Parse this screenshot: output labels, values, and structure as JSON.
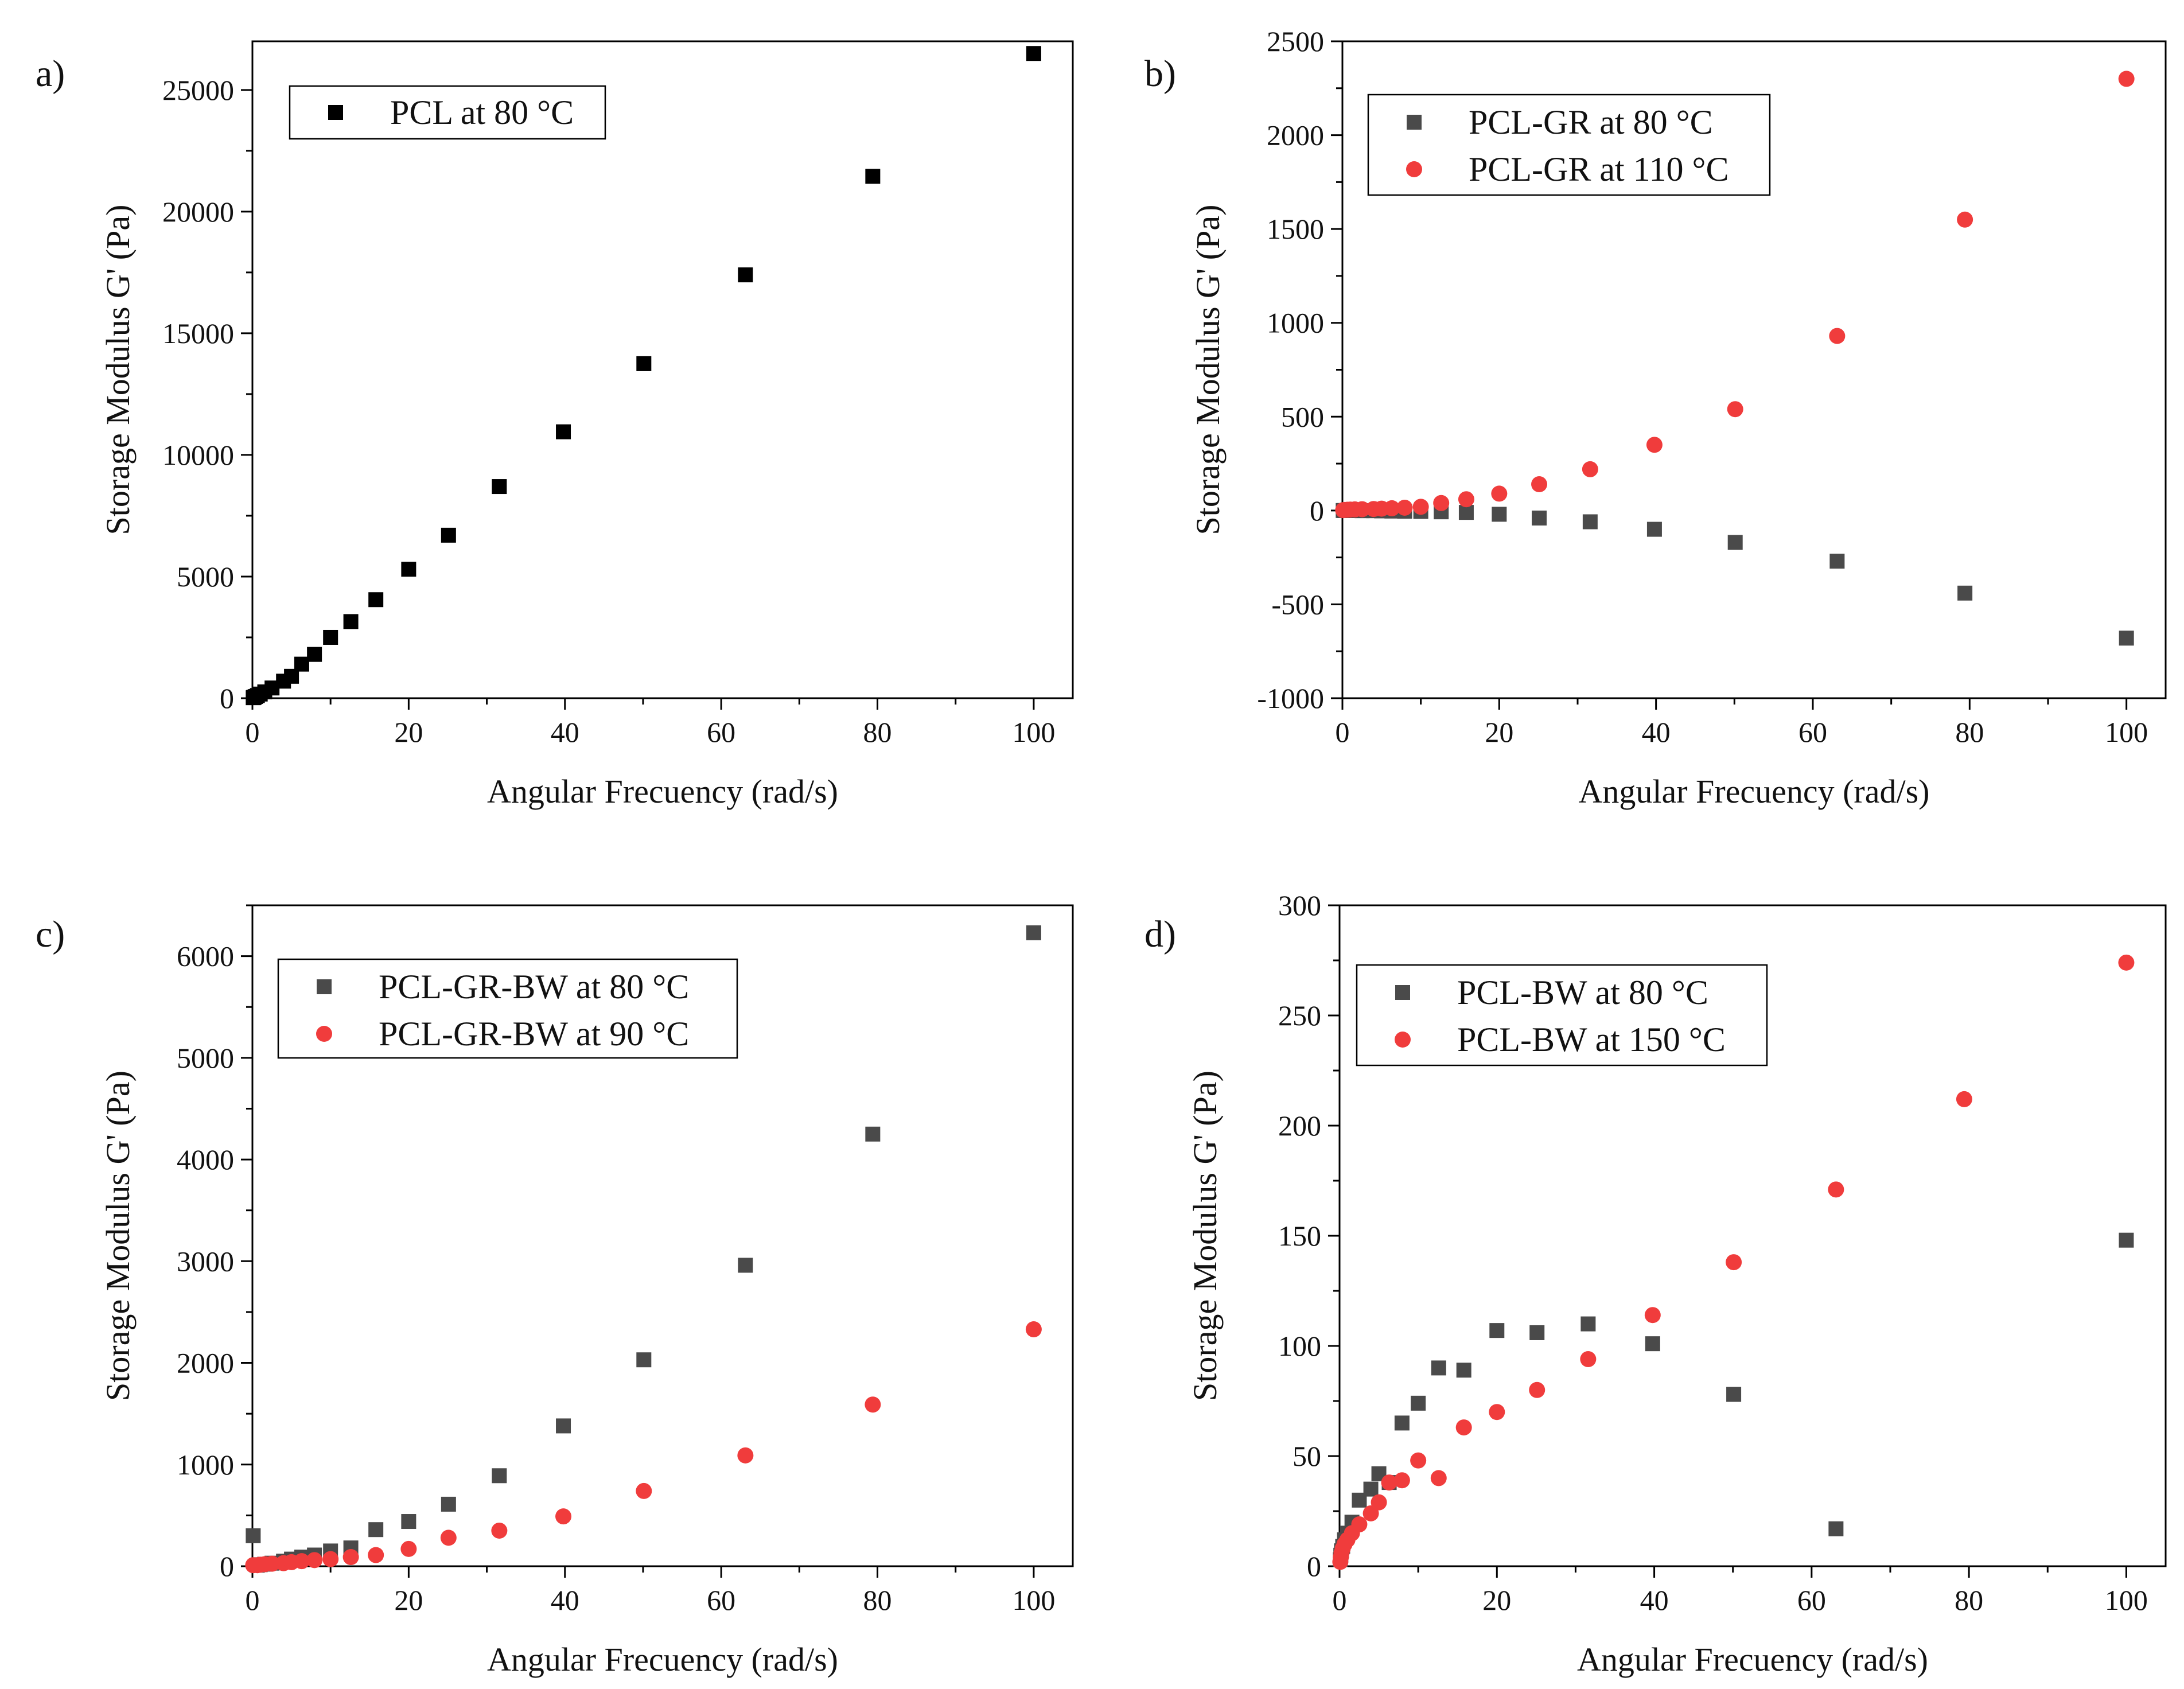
{
  "figure": {
    "panel_count": 4
  },
  "chart_data": [
    {
      "panel_label": "a)",
      "type": "scatter",
      "xlabel": "Angular Frecuency (rad/s)",
      "ylabel": "Storage Modulus G' (Pa)",
      "xlim": [
        0,
        105
      ],
      "ylim": [
        0,
        27000
      ],
      "x_ticks": [
        0,
        20,
        40,
        60,
        80,
        100
      ],
      "y_ticks": [
        0,
        5000,
        10000,
        15000,
        20000,
        25000
      ],
      "legend": "top-left",
      "series": [
        {
          "name": "PCL at 80 °C",
          "marker": "square",
          "color": "#000000",
          "x": [
            0.1,
            0.16,
            0.25,
            0.4,
            0.63,
            1,
            1.58,
            2.51,
            3.98,
            5,
            6.31,
            7.94,
            10,
            12.6,
            15.8,
            20,
            25.1,
            31.6,
            39.8,
            50.1,
            63.1,
            79.4,
            100
          ],
          "y": [
            20,
            30,
            45,
            70,
            110,
            170,
            260,
            420,
            700,
            900,
            1400,
            1800,
            2500,
            3150,
            4050,
            5300,
            6700,
            8700,
            10950,
            13750,
            17400,
            21450,
            26500
          ]
        }
      ]
    },
    {
      "panel_label": "b)",
      "type": "scatter",
      "xlabel": "Angular Frecuency (rad/s)",
      "ylabel": "Storage Modulus G' (Pa)",
      "xlim": [
        0,
        105
      ],
      "ylim": [
        -1000,
        2500
      ],
      "x_ticks": [
        0,
        20,
        40,
        60,
        80,
        100
      ],
      "y_ticks": [
        -1000,
        -500,
        0,
        500,
        1000,
        1500,
        2000,
        2500
      ],
      "legend": "top-left",
      "series": [
        {
          "name": "PCL-GR at 80 °C",
          "marker": "square",
          "color": "#4a4a4a",
          "x": [
            0.1,
            0.25,
            0.63,
            1,
            1.58,
            2.51,
            3.98,
            5,
            6.31,
            7.94,
            10,
            12.6,
            15.8,
            20,
            25.1,
            31.6,
            39.8,
            50.1,
            63.1,
            79.4,
            100
          ],
          "y": [
            0,
            0,
            0,
            0,
            0,
            -1,
            -1,
            -2,
            -3,
            -4,
            -5,
            -7,
            -10,
            -20,
            -40,
            -60,
            -100,
            -170,
            -270,
            -440,
            -680
          ]
        },
        {
          "name": "PCL-GR at 110 °C",
          "marker": "circle",
          "color": "#f03c3c",
          "x": [
            0.1,
            0.25,
            0.63,
            1,
            1.58,
            2.51,
            3.98,
            5,
            6.31,
            7.94,
            10,
            12.6,
            15.8,
            20,
            25.1,
            31.6,
            39.8,
            50.1,
            63.1,
            79.4,
            100
          ],
          "y": [
            2,
            3,
            4,
            5,
            6,
            7,
            8,
            10,
            12,
            15,
            20,
            40,
            60,
            90,
            140,
            220,
            350,
            540,
            930,
            1550,
            2300
          ]
        }
      ]
    },
    {
      "panel_label": "c)",
      "type": "scatter",
      "xlabel": "Angular Frecuency (rad/s)",
      "ylabel": "Storage Modulus G' (Pa)",
      "xlim": [
        0,
        105
      ],
      "ylim": [
        0,
        6500
      ],
      "x_ticks": [
        0,
        20,
        40,
        60,
        80,
        100
      ],
      "y_ticks": [
        0,
        1000,
        2000,
        3000,
        4000,
        5000,
        6000
      ],
      "legend": "top-left",
      "series": [
        {
          "name": "PCL-GR-BW at 80 °C",
          "marker": "square",
          "color": "#4a4a4a",
          "x": [
            0.1,
            0.63,
            1,
            1.58,
            2.51,
            3.98,
            5,
            6.31,
            7.94,
            10,
            12.6,
            15.8,
            20,
            25.1,
            31.6,
            39.8,
            50.1,
            63.1,
            79.4,
            100
          ],
          "y": [
            300,
            10,
            15,
            20,
            30,
            50,
            70,
            90,
            110,
            150,
            180,
            360,
            440,
            610,
            890,
            1380,
            2030,
            2960,
            4250,
            6230
          ]
        },
        {
          "name": "PCL-GR-BW at 90 °C",
          "marker": "circle",
          "color": "#f03c3c",
          "x": [
            0.1,
            0.63,
            1,
            1.58,
            2.51,
            3.98,
            5,
            6.31,
            7.94,
            10,
            12.6,
            15.8,
            20,
            25.1,
            31.6,
            39.8,
            50.1,
            63.1,
            79.4,
            100
          ],
          "y": [
            10,
            10,
            15,
            20,
            25,
            30,
            40,
            50,
            60,
            70,
            90,
            110,
            170,
            280,
            350,
            490,
            740,
            1090,
            1590,
            2330
          ]
        }
      ]
    },
    {
      "panel_label": "d)",
      "type": "scatter",
      "xlabel": "Angular Frecuency (rad/s)",
      "ylabel": "Storage Modulus G' (Pa)",
      "xlim": [
        0,
        105
      ],
      "ylim": [
        0,
        300
      ],
      "x_ticks": [
        0,
        20,
        40,
        60,
        80,
        100
      ],
      "y_ticks": [
        0,
        50,
        100,
        150,
        200,
        250,
        300
      ],
      "legend": "top-left",
      "series": [
        {
          "name": "PCL-BW at 80 °C",
          "marker": "square",
          "color": "#4a4a4a",
          "x": [
            0.1,
            0.16,
            0.25,
            0.4,
            0.63,
            1,
            1.58,
            2.51,
            3.98,
            5,
            6.31,
            7.94,
            10,
            12.6,
            15.8,
            20,
            25.1,
            31.6,
            39.8,
            50.1,
            63.1,
            100
          ],
          "y": [
            3,
            5,
            7,
            9,
            12,
            15,
            20,
            30,
            35,
            42,
            38,
            65,
            74,
            90,
            89,
            107,
            106,
            110,
            101,
            78,
            17,
            148
          ]
        },
        {
          "name": "PCL-BW at 150 °C",
          "marker": "circle",
          "color": "#f03c3c",
          "x": [
            0.1,
            0.16,
            0.25,
            0.4,
            0.63,
            1,
            1.58,
            2.51,
            3.98,
            5,
            6.31,
            7.94,
            10,
            12.6,
            15.8,
            20,
            25.1,
            31.6,
            39.8,
            50.1,
            63.1,
            79.4,
            100
          ],
          "y": [
            2,
            4,
            6,
            8,
            10,
            12,
            15,
            19,
            24,
            29,
            38,
            39,
            48,
            40,
            63,
            70,
            80,
            94,
            114,
            138,
            171,
            212,
            274
          ]
        }
      ]
    }
  ]
}
